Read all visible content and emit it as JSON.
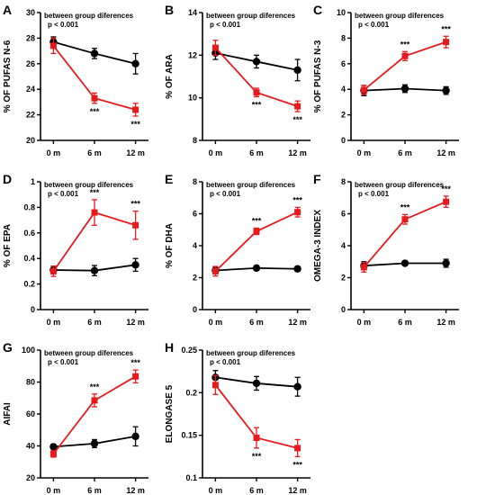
{
  "chart_data": [
    {
      "type": "line",
      "letter": "A",
      "ylabel": "% OF PUFAS N-6",
      "note1": "between group diferences",
      "note2": "p < 0.001",
      "x": [
        "0 m",
        "6 m",
        "12 m"
      ],
      "ylim": [
        20,
        30
      ],
      "yticks": [
        20,
        22,
        24,
        26,
        28,
        30
      ],
      "series": [
        {
          "color": "#e8191c",
          "marker": "square",
          "values": [
            27.4,
            23.3,
            22.4
          ],
          "errors": [
            0.6,
            0.4,
            0.5
          ],
          "stars": [
            "",
            "***",
            "***"
          ]
        },
        {
          "color": "#000000",
          "marker": "circle",
          "values": [
            27.7,
            26.8,
            26.0
          ],
          "errors": [
            0.4,
            0.4,
            0.8
          ],
          "stars": [
            "",
            "",
            ""
          ]
        }
      ]
    },
    {
      "type": "line",
      "letter": "B",
      "ylabel": "% OF ARA",
      "note1": "between group diferences",
      "note2": "p < 0.001",
      "x": [
        "0 m",
        "6 m",
        "12 m"
      ],
      "ylim": [
        8,
        14
      ],
      "yticks": [
        8,
        10,
        12,
        14
      ],
      "series": [
        {
          "color": "#e8191c",
          "marker": "square",
          "values": [
            12.35,
            10.25,
            9.6
          ],
          "errors": [
            0.35,
            0.2,
            0.25
          ],
          "stars": [
            "",
            "***",
            "***"
          ]
        },
        {
          "color": "#000000",
          "marker": "circle",
          "values": [
            12.1,
            11.7,
            11.3
          ],
          "errors": [
            0.3,
            0.3,
            0.5
          ],
          "stars": [
            "",
            "",
            ""
          ]
        }
      ]
    },
    {
      "type": "line",
      "letter": "C",
      "ylabel": "% OF PUFAS N-3",
      "note1": "between group diferences",
      "note2": "p < 0.001",
      "x": [
        "0 m",
        "6 m",
        "12 m"
      ],
      "ylim": [
        0,
        10
      ],
      "yticks": [
        0,
        2,
        4,
        6,
        8,
        10
      ],
      "series": [
        {
          "color": "#e8191c",
          "marker": "square",
          "values": [
            3.95,
            6.6,
            7.7
          ],
          "errors": [
            0.35,
            0.35,
            0.45
          ],
          "stars": [
            "",
            "***",
            "***"
          ]
        },
        {
          "color": "#000000",
          "marker": "circle",
          "values": [
            3.9,
            4.05,
            3.9
          ],
          "errors": [
            0.4,
            0.3,
            0.3
          ],
          "stars": [
            "",
            "",
            ""
          ]
        }
      ]
    },
    {
      "type": "line",
      "letter": "D",
      "ylabel": "% OF EPA",
      "note1": "between group diferences",
      "note2": "p < 0.001",
      "x": [
        "0 m",
        "6 m",
        "12 m"
      ],
      "ylim": [
        0,
        1.0
      ],
      "yticks": [
        0,
        0.2,
        0.4,
        0.6,
        0.8,
        1.0
      ],
      "series": [
        {
          "color": "#e8191c",
          "marker": "square",
          "values": [
            0.3,
            0.76,
            0.66
          ],
          "errors": [
            0.04,
            0.1,
            0.11
          ],
          "stars": [
            "",
            "***",
            "***"
          ]
        },
        {
          "color": "#000000",
          "marker": "circle",
          "values": [
            0.31,
            0.305,
            0.35
          ],
          "errors": [
            0.03,
            0.04,
            0.05
          ],
          "stars": [
            "",
            "",
            ""
          ]
        }
      ]
    },
    {
      "type": "line",
      "letter": "E",
      "ylabel": "% OF DHA",
      "note1": "between group diferences",
      "note2": "p < 0.001",
      "x": [
        "0 m",
        "6 m",
        "12 m"
      ],
      "ylim": [
        0,
        8
      ],
      "yticks": [
        0,
        2,
        4,
        6,
        8
      ],
      "series": [
        {
          "color": "#e8191c",
          "marker": "square",
          "values": [
            2.4,
            4.9,
            6.1
          ],
          "errors": [
            0.3,
            0.2,
            0.3
          ],
          "stars": [
            "",
            "***",
            "***"
          ]
        },
        {
          "color": "#000000",
          "marker": "circle",
          "values": [
            2.45,
            2.6,
            2.55
          ],
          "errors": [
            0.2,
            0.1,
            0.15
          ],
          "stars": [
            "",
            "",
            ""
          ]
        }
      ]
    },
    {
      "type": "line",
      "letter": "F",
      "ylabel": "OMEGA-3 INDEX",
      "note1": "between group diferences",
      "note2": "p < 0.001",
      "x": [
        "0 m",
        "6 m",
        "12 m"
      ],
      "ylim": [
        0,
        8
      ],
      "yticks": [
        0,
        2,
        4,
        6,
        8
      ],
      "series": [
        {
          "color": "#e8191c",
          "marker": "square",
          "values": [
            2.65,
            5.65,
            6.75
          ],
          "errors": [
            0.3,
            0.3,
            0.35
          ],
          "stars": [
            "",
            "***",
            "***"
          ]
        },
        {
          "color": "#000000",
          "marker": "circle",
          "values": [
            2.75,
            2.9,
            2.9
          ],
          "errors": [
            0.25,
            0.1,
            0.25
          ],
          "stars": [
            "",
            "",
            ""
          ]
        }
      ]
    },
    {
      "type": "line",
      "letter": "G",
      "ylabel": "AIFAI",
      "note1": "between group diferences",
      "note2": "p < 0.001",
      "x": [
        "0 m",
        "6 m",
        "12 m"
      ],
      "ylim": [
        20,
        100
      ],
      "yticks": [
        20,
        40,
        60,
        80,
        100
      ],
      "series": [
        {
          "color": "#e8191c",
          "marker": "square",
          "values": [
            35,
            68.5,
            83.5
          ],
          "errors": [
            2,
            4,
            4
          ],
          "stars": [
            "",
            "***",
            "***"
          ]
        },
        {
          "color": "#000000",
          "marker": "circle",
          "values": [
            39.5,
            41.5,
            46
          ],
          "errors": [
            1.5,
            2.5,
            6
          ],
          "stars": [
            "",
            "",
            ""
          ]
        }
      ]
    },
    {
      "type": "line",
      "letter": "H",
      "ylabel": "ELONGASE 5",
      "note1": "between group diferences",
      "note2": "p < 0.001",
      "x": [
        "0 m",
        "6 m",
        "12 m"
      ],
      "ylim": [
        0.1,
        0.25
      ],
      "yticks": [
        0.1,
        0.15,
        0.2,
        0.25
      ],
      "series": [
        {
          "color": "#e8191c",
          "marker": "square",
          "values": [
            0.209,
            0.147,
            0.135
          ],
          "errors": [
            0.011,
            0.012,
            0.01
          ],
          "stars": [
            "",
            "***",
            "***"
          ]
        },
        {
          "color": "#000000",
          "marker": "circle",
          "values": [
            0.218,
            0.211,
            0.207
          ],
          "errors": [
            0.008,
            0.008,
            0.011
          ],
          "stars": [
            "",
            "",
            ""
          ]
        }
      ]
    }
  ]
}
